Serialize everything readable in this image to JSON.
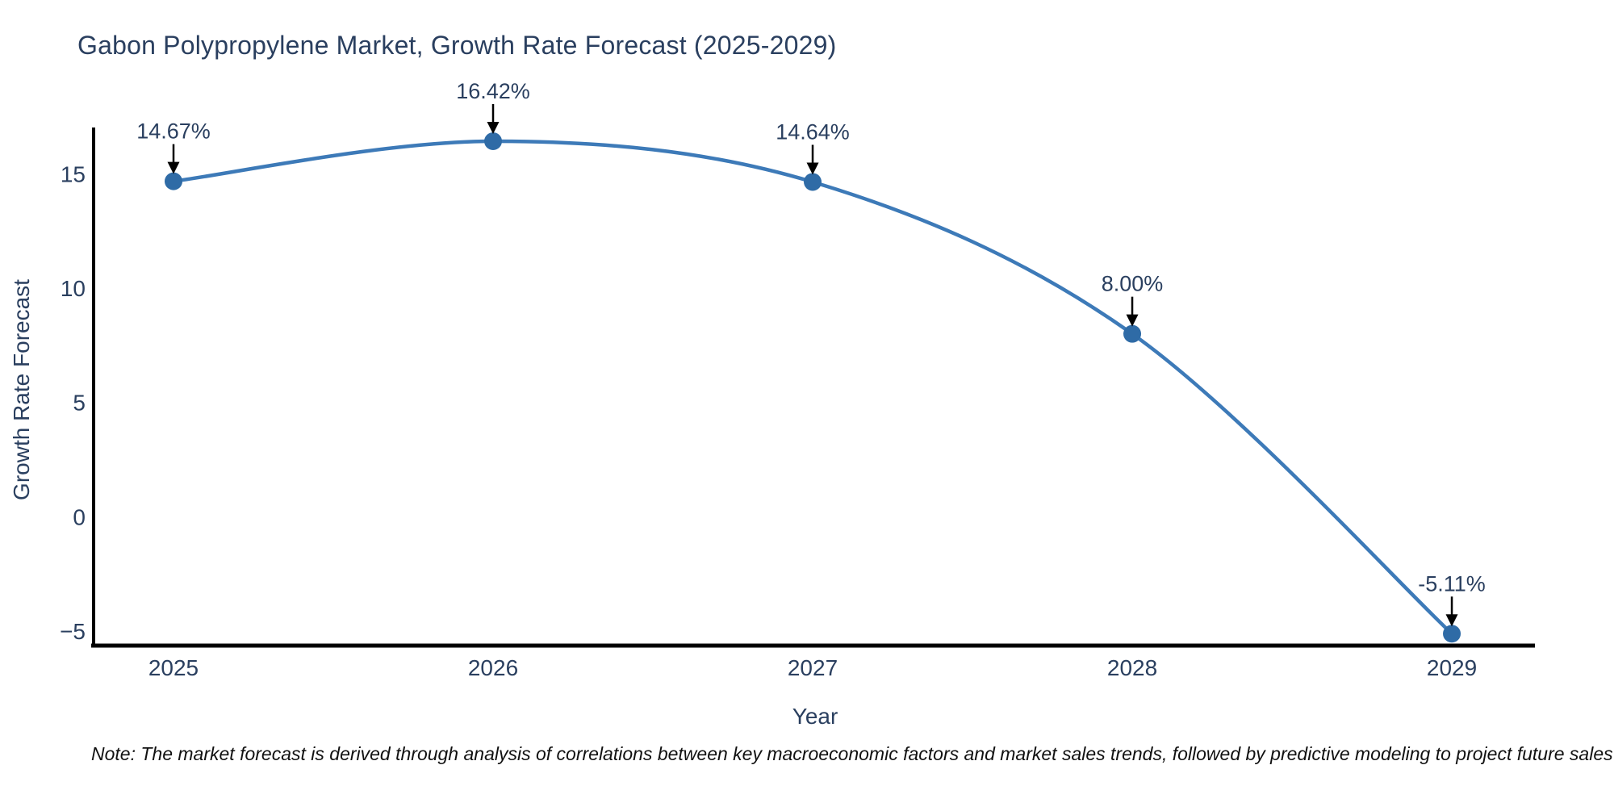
{
  "chart_data": {
    "type": "line",
    "title": "Gabon Polypropylene Market, Growth Rate Forecast (2025-2029)",
    "xlabel": "Year",
    "ylabel": "Growth Rate Forecast",
    "categories": [
      2025,
      2026,
      2027,
      2028,
      2029
    ],
    "series": [
      {
        "name": "Growth Rate Forecast",
        "values": [
          14.67,
          16.42,
          14.64,
          8.0,
          -5.11
        ],
        "point_labels": [
          "14.67%",
          "16.42%",
          "14.64%",
          "8.00%",
          "-5.11%"
        ]
      }
    ],
    "line_shape": "spline",
    "markers": true,
    "grid": false,
    "legend_position": "none",
    "xlim": [
      2024.75,
      2029.26
    ],
    "ylim": [
      -5.63,
      17.02
    ],
    "yticks": [
      15,
      10,
      5,
      0,
      -5
    ],
    "ytick_labels": [
      "15",
      "10",
      "5",
      "0",
      "−5"
    ],
    "xticks": [
      2025,
      2026,
      2027,
      2028,
      2029
    ],
    "xtick_labels": [
      "2025",
      "2026",
      "2027",
      "2028",
      "2029"
    ],
    "colors": {
      "line": "#3d7ab8",
      "marker": "#2f6ba6",
      "axis": "#000000",
      "arrow": "#000000",
      "text": "#2a3f5f",
      "note_text": "#111111",
      "background": "#ffffff"
    },
    "note": "Note: The market forecast is derived through analysis of correlations between key macroeconomic factors and market sales trends, followed by predictive modeling to project future sales"
  }
}
